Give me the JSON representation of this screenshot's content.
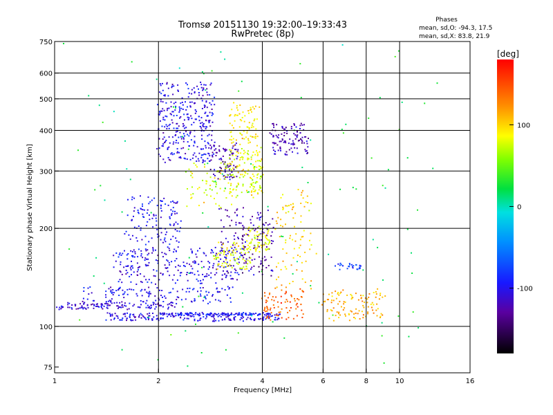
{
  "chart_data": {
    "type": "scatter",
    "title": "Tromsø 20151130 19:32:00–19:33:43",
    "subtitle": "RwPretec (8p)",
    "xlabel": "Frequency [MHz]",
    "ylabel": "Stationary phase Virtual Height [km]",
    "x_scale": "log",
    "y_scale": "log",
    "xlim": [
      1,
      16
    ],
    "ylim": [
      72,
      750
    ],
    "x_ticks": [
      1,
      2,
      4,
      6,
      8,
      10,
      16
    ],
    "y_ticks": [
      75,
      100,
      200,
      300,
      400,
      500,
      600,
      750
    ],
    "x_grid": [
      2,
      4,
      6,
      8,
      10
    ],
    "y_grid": [
      100,
      200,
      300,
      400,
      500,
      600
    ],
    "grid": true,
    "phases_box": {
      "title": "Phases",
      "line_o": "mean, sd,O: -94.3, 17.5",
      "line_x": "mean, sd,X:  83.8, 21.9"
    },
    "colorbar": {
      "label": "[deg]",
      "range": [
        -180,
        180
      ],
      "ticks": [
        100,
        0,
        -100
      ],
      "legend_placement": "right"
    },
    "clusters": [
      {
        "fmin": 1.0,
        "fmax": 2.3,
        "h0": 113,
        "h1": 118,
        "phase": -110,
        "n": 120,
        "sd": 0.015
      },
      {
        "fmin": 1.4,
        "fmax": 4.5,
        "h0": 104,
        "h1": 110,
        "phase": -105,
        "n": 200,
        "sd": 0.015
      },
      {
        "fmin": 2.0,
        "fmax": 4.2,
        "h0": 108,
        "h1": 110,
        "phase": -95,
        "n": 120,
        "sd": 0.012
      },
      {
        "fmin": 1.2,
        "fmax": 3.3,
        "h0": 118,
        "h1": 132,
        "phase": -100,
        "n": 140,
        "sd": 0.03
      },
      {
        "fmin": 1.5,
        "fmax": 3.5,
        "h0": 135,
        "h1": 175,
        "phase": -105,
        "n": 260,
        "sd": 0.04
      },
      {
        "fmin": 1.6,
        "fmax": 2.3,
        "h0": 180,
        "h1": 250,
        "phase": -100,
        "n": 120,
        "sd": 0.05
      },
      {
        "fmin": 2.0,
        "fmax": 2.9,
        "h0": 320,
        "h1": 560,
        "phase": -105,
        "n": 320,
        "sd": 0.06
      },
      {
        "fmin": 2.8,
        "fmax": 3.4,
        "h0": 280,
        "h1": 360,
        "phase": -125,
        "n": 90,
        "sd": 0.04
      },
      {
        "fmin": 3.0,
        "fmax": 4.3,
        "h0": 140,
        "h1": 230,
        "phase": -125,
        "n": 160,
        "sd": 0.05
      },
      {
        "fmin": 3.2,
        "fmax": 4.0,
        "h0": 250,
        "h1": 350,
        "phase": 80,
        "n": 140,
        "sd": 0.04
      },
      {
        "fmin": 2.9,
        "fmax": 3.7,
        "h0": 150,
        "h1": 180,
        "phase": 85,
        "n": 80,
        "sd": 0.04
      },
      {
        "fmin": 3.6,
        "fmax": 4.2,
        "h0": 170,
        "h1": 200,
        "phase": 80,
        "n": 60,
        "sd": 0.04
      },
      {
        "fmin": 3.2,
        "fmax": 3.9,
        "h0": 360,
        "h1": 480,
        "phase": 90,
        "n": 80,
        "sd": 0.05
      },
      {
        "fmin": 4.2,
        "fmax": 5.4,
        "h0": 340,
        "h1": 420,
        "phase": -120,
        "n": 110,
        "sd": 0.05
      },
      {
        "fmin": 4.0,
        "fmax": 5.3,
        "h0": 105,
        "h1": 130,
        "phase": 140,
        "n": 80,
        "sd": 0.05
      },
      {
        "fmin": 6.0,
        "fmax": 9.0,
        "h0": 105,
        "h1": 130,
        "phase": 110,
        "n": 110,
        "sd": 0.05
      },
      {
        "fmin": 4.4,
        "fmax": 5.6,
        "h0": 130,
        "h1": 260,
        "phase": 100,
        "n": 90,
        "sd": 0.07
      },
      {
        "fmin": 2.4,
        "fmax": 3.3,
        "h0": 230,
        "h1": 320,
        "phase": 80,
        "n": 70,
        "sd": 0.05
      },
      {
        "fmin": 6.5,
        "fmax": 7.8,
        "h0": 150,
        "h1": 156,
        "phase": -80,
        "n": 25,
        "sd": 0.02
      },
      {
        "fmin": 1.0,
        "fmax": 12.0,
        "h0": 75,
        "h1": 700,
        "phase": 20,
        "n": 120,
        "sd": 0.3
      }
    ]
  }
}
